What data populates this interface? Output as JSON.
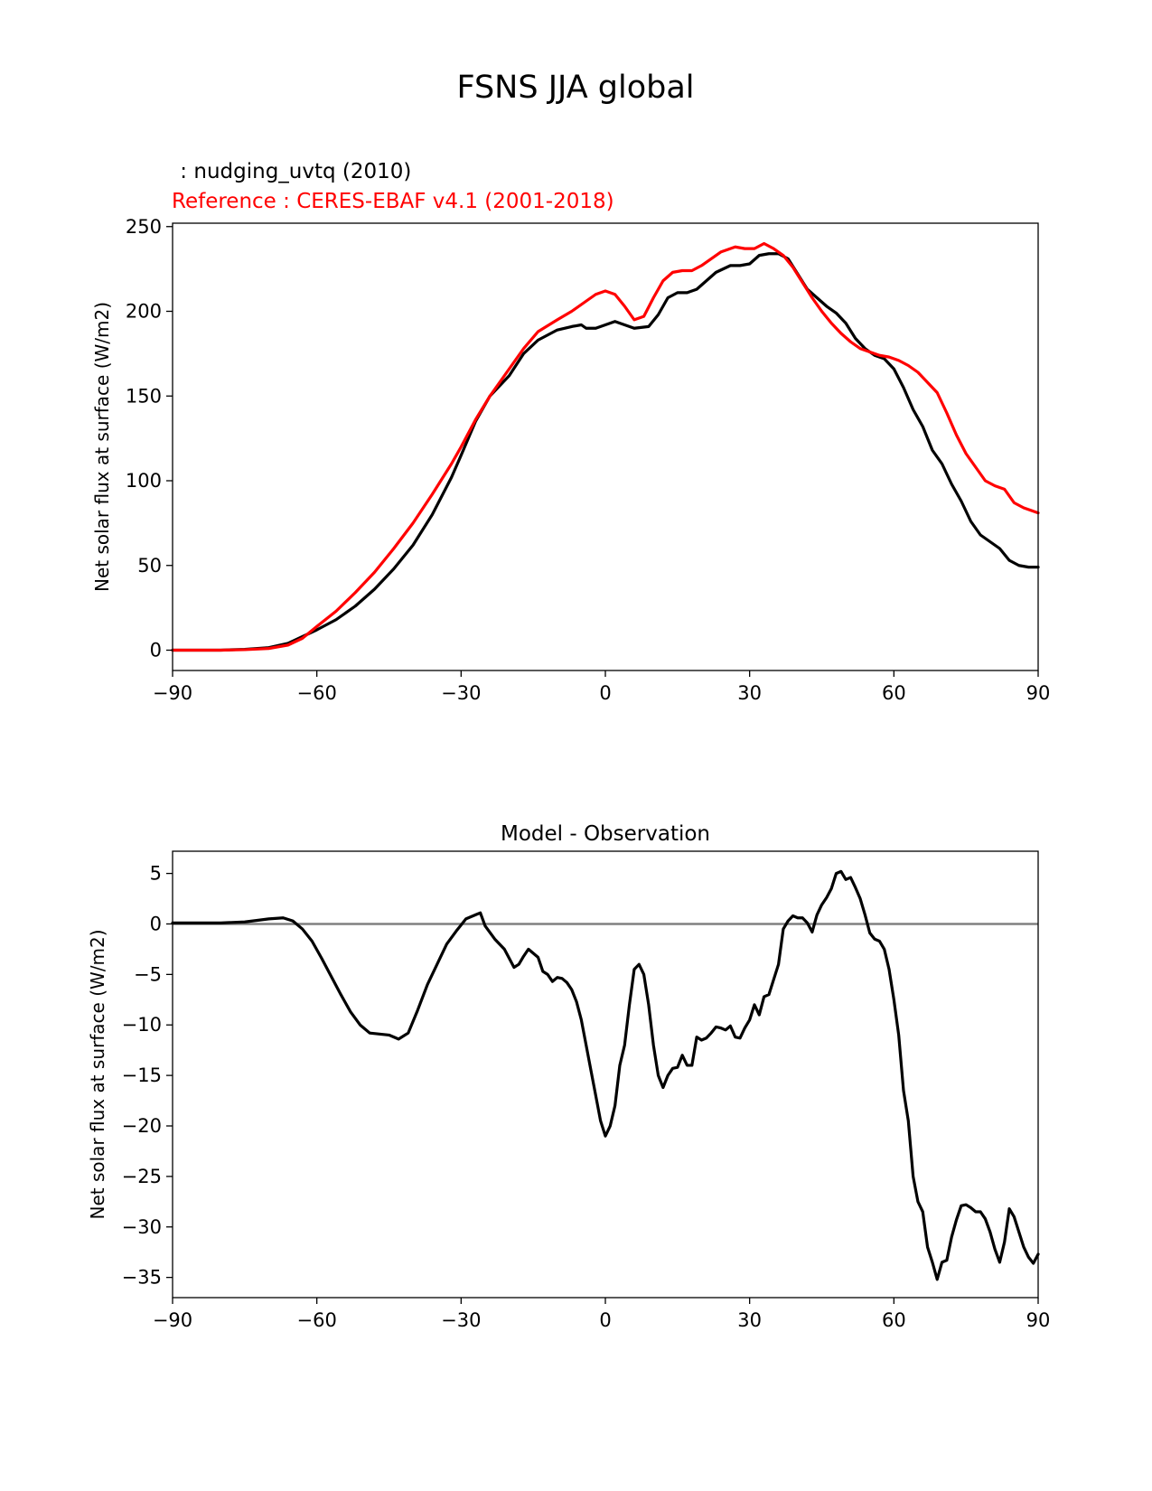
{
  "figure": {
    "title": "FSNS JJA global",
    "test_label": " : nudging_uvtq (2010)",
    "ref_label": "Reference : CERES-EBAF v4.1 (2001-2018)"
  },
  "colors": {
    "test": "#000000",
    "reference": "#ff0000",
    "zero_line": "#808080"
  },
  "chart_data": [
    {
      "type": "line",
      "title": "",
      "xlabel": "",
      "ylabel": "Net solar flux at surface (W/m2)",
      "xlim": [
        -90,
        90
      ],
      "ylim": [
        -12,
        252
      ],
      "xticks": [
        -90,
        -60,
        -30,
        0,
        30,
        60,
        90
      ],
      "yticks": [
        0,
        50,
        100,
        150,
        200,
        250
      ],
      "series": [
        {
          "name": "nudging_uvtq (2010)",
          "color": "#000000",
          "points": [
            [
              -90,
              0
            ],
            [
              -80,
              0
            ],
            [
              -75,
              0.5
            ],
            [
              -70,
              1.5
            ],
            [
              -66,
              4
            ],
            [
              -63,
              8
            ],
            [
              -60,
              12
            ],
            [
              -56,
              18
            ],
            [
              -52,
              26
            ],
            [
              -48,
              36
            ],
            [
              -44,
              48
            ],
            [
              -40,
              62
            ],
            [
              -36,
              80
            ],
            [
              -32,
              102
            ],
            [
              -30,
              115
            ],
            [
              -27,
              135
            ],
            [
              -24,
              150
            ],
            [
              -20,
              162
            ],
            [
              -17,
              175
            ],
            [
              -14,
              183
            ],
            [
              -10,
              189
            ],
            [
              -7,
              191
            ],
            [
              -5,
              192
            ],
            [
              -4,
              190
            ],
            [
              -2,
              190
            ],
            [
              0,
              192
            ],
            [
              2,
              194
            ],
            [
              4,
              192
            ],
            [
              6,
              190
            ],
            [
              9,
              191
            ],
            [
              11,
              198
            ],
            [
              13,
              208
            ],
            [
              15,
              211
            ],
            [
              17,
              211
            ],
            [
              19,
              213
            ],
            [
              21,
              218
            ],
            [
              23,
              223
            ],
            [
              26,
              227
            ],
            [
              28,
              227
            ],
            [
              30,
              228
            ],
            [
              32,
              233
            ],
            [
              34,
              234
            ],
            [
              36,
              234
            ],
            [
              38,
              231
            ],
            [
              40,
              222
            ],
            [
              42,
              213
            ],
            [
              44,
              208
            ],
            [
              46,
              203
            ],
            [
              48,
              199
            ],
            [
              50,
              193
            ],
            [
              52,
              184
            ],
            [
              54,
              178
            ],
            [
              56,
              174
            ],
            [
              58,
              172
            ],
            [
              60,
              166
            ],
            [
              62,
              155
            ],
            [
              64,
              142
            ],
            [
              66,
              132
            ],
            [
              68,
              118
            ],
            [
              70,
              110
            ],
            [
              72,
              98
            ],
            [
              74,
              88
            ],
            [
              76,
              76
            ],
            [
              78,
              68
            ],
            [
              80,
              64
            ],
            [
              82,
              60
            ],
            [
              84,
              53
            ],
            [
              86,
              50
            ],
            [
              88,
              49
            ],
            [
              90,
              49
            ]
          ]
        },
        {
          "name": "CERES-EBAF v4.1 (2001-2018)",
          "color": "#ff0000",
          "points": [
            [
              -90,
              0
            ],
            [
              -80,
              0
            ],
            [
              -75,
              0.3
            ],
            [
              -70,
              1
            ],
            [
              -66,
              3
            ],
            [
              -63,
              7
            ],
            [
              -60,
              14
            ],
            [
              -56,
              23
            ],
            [
              -52,
              34
            ],
            [
              -48,
              46
            ],
            [
              -44,
              60
            ],
            [
              -40,
              75
            ],
            [
              -36,
              92
            ],
            [
              -32,
              110
            ],
            [
              -30,
              120
            ],
            [
              -27,
              136
            ],
            [
              -24,
              150
            ],
            [
              -20,
              166
            ],
            [
              -17,
              178
            ],
            [
              -14,
              188
            ],
            [
              -10,
              195
            ],
            [
              -7,
              200
            ],
            [
              -4,
              206
            ],
            [
              -2,
              210
            ],
            [
              0,
              212
            ],
            [
              2,
              210
            ],
            [
              4,
              203
            ],
            [
              6,
              195
            ],
            [
              8,
              197
            ],
            [
              10,
              208
            ],
            [
              12,
              218
            ],
            [
              14,
              223
            ],
            [
              16,
              224
            ],
            [
              18,
              224
            ],
            [
              20,
              227
            ],
            [
              22,
              231
            ],
            [
              24,
              235
            ],
            [
              27,
              238
            ],
            [
              29,
              237
            ],
            [
              31,
              237
            ],
            [
              33,
              240
            ],
            [
              35,
              237
            ],
            [
              37,
              233
            ],
            [
              39,
              226
            ],
            [
              41,
              217
            ],
            [
              43,
              208
            ],
            [
              45,
              200
            ],
            [
              47,
              193
            ],
            [
              49,
              187
            ],
            [
              51,
              182
            ],
            [
              53,
              178
            ],
            [
              55,
              176
            ],
            [
              57,
              174
            ],
            [
              59,
              173
            ],
            [
              61,
              171
            ],
            [
              63,
              168
            ],
            [
              65,
              164
            ],
            [
              67,
              158
            ],
            [
              69,
              152
            ],
            [
              71,
              140
            ],
            [
              73,
              127
            ],
            [
              75,
              116
            ],
            [
              77,
              108
            ],
            [
              79,
              100
            ],
            [
              81,
              97
            ],
            [
              83,
              95
            ],
            [
              85,
              87
            ],
            [
              87,
              84
            ],
            [
              89,
              82
            ],
            [
              90,
              81
            ]
          ]
        }
      ]
    },
    {
      "type": "line",
      "title": "Model - Observation",
      "xlabel": "",
      "ylabel": "Net solar flux at surface (W/m2)",
      "xlim": [
        -90,
        90
      ],
      "ylim": [
        -37,
        7.2
      ],
      "xticks": [
        -90,
        -60,
        -30,
        0,
        30,
        60,
        90
      ],
      "yticks": [
        5,
        0,
        -5,
        -10,
        -15,
        -20,
        -25,
        -30,
        -35
      ],
      "zero_line": 0,
      "series": [
        {
          "name": "",
          "color": "#000000",
          "points": [
            [
              -90,
              0.1
            ],
            [
              -80,
              0.1
            ],
            [
              -75,
              0.2
            ],
            [
              -70,
              0.5
            ],
            [
              -67,
              0.6
            ],
            [
              -65,
              0.3
            ],
            [
              -63,
              -0.5
            ],
            [
              -61,
              -1.7
            ],
            [
              -59,
              -3.4
            ],
            [
              -57,
              -5.2
            ],
            [
              -55,
              -7
            ],
            [
              -53,
              -8.7
            ],
            [
              -51,
              -10
            ],
            [
              -49,
              -10.8
            ],
            [
              -47,
              -10.9
            ],
            [
              -45,
              -11
            ],
            [
              -43,
              -11.4
            ],
            [
              -41,
              -10.8
            ],
            [
              -39,
              -8.5
            ],
            [
              -37,
              -6
            ],
            [
              -35,
              -4
            ],
            [
              -33,
              -2
            ],
            [
              -31,
              -0.7
            ],
            [
              -29,
              0.5
            ],
            [
              -27,
              0.9
            ],
            [
              -26,
              1.1
            ],
            [
              -25,
              -0.2
            ],
            [
              -23,
              -1.5
            ],
            [
              -21,
              -2.5
            ],
            [
              -19,
              -4.3
            ],
            [
              -18,
              -4
            ],
            [
              -17,
              -3.2
            ],
            [
              -16,
              -2.5
            ],
            [
              -14,
              -3.3
            ],
            [
              -13,
              -4.7
            ],
            [
              -12,
              -5
            ],
            [
              -11,
              -5.7
            ],
            [
              -10,
              -5.3
            ],
            [
              -9,
              -5.4
            ],
            [
              -8,
              -5.8
            ],
            [
              -7,
              -6.5
            ],
            [
              -6,
              -7.7
            ],
            [
              -5,
              -9.5
            ],
            [
              -4,
              -12
            ],
            [
              -3,
              -14.5
            ],
            [
              -2,
              -17
            ],
            [
              -1,
              -19.5
            ],
            [
              0,
              -21
            ],
            [
              1,
              -20
            ],
            [
              2,
              -18
            ],
            [
              3,
              -14
            ],
            [
              4,
              -12
            ],
            [
              5,
              -8
            ],
            [
              6,
              -4.5
            ],
            [
              7,
              -4
            ],
            [
              8,
              -5
            ],
            [
              9,
              -8
            ],
            [
              10,
              -12
            ],
            [
              11,
              -15
            ],
            [
              12,
              -16.2
            ],
            [
              13,
              -15
            ],
            [
              14,
              -14.3
            ],
            [
              15,
              -14.2
            ],
            [
              16,
              -13
            ],
            [
              17,
              -14
            ],
            [
              18,
              -14
            ],
            [
              19,
              -11.2
            ],
            [
              20,
              -11.5
            ],
            [
              21,
              -11.3
            ],
            [
              22,
              -10.8
            ],
            [
              23,
              -10.2
            ],
            [
              24,
              -10.3
            ],
            [
              25,
              -10.5
            ],
            [
              26,
              -10.1
            ],
            [
              27,
              -11.2
            ],
            [
              28,
              -11.3
            ],
            [
              29,
              -10.3
            ],
            [
              30,
              -9.5
            ],
            [
              31,
              -8
            ],
            [
              32,
              -9
            ],
            [
              33,
              -7.2
            ],
            [
              34,
              -7
            ],
            [
              35,
              -5.5
            ],
            [
              36,
              -4
            ],
            [
              37,
              -0.5
            ],
            [
              38,
              0.3
            ],
            [
              39,
              0.8
            ],
            [
              40,
              0.6
            ],
            [
              41,
              0.6
            ],
            [
              42,
              0.1
            ],
            [
              43,
              -0.8
            ],
            [
              44,
              0.9
            ],
            [
              45,
              1.9
            ],
            [
              46,
              2.6
            ],
            [
              47,
              3.5
            ],
            [
              48,
              5
            ],
            [
              49,
              5.2
            ],
            [
              50,
              4.4
            ],
            [
              51,
              4.6
            ],
            [
              52,
              3.6
            ],
            [
              53,
              2.5
            ],
            [
              54,
              0.9
            ],
            [
              55,
              -0.9
            ],
            [
              56,
              -1.5
            ],
            [
              57,
              -1.7
            ],
            [
              58,
              -2.5
            ],
            [
              59,
              -4.5
            ],
            [
              60,
              -7.5
            ],
            [
              61,
              -11
            ],
            [
              62,
              -16.5
            ],
            [
              63,
              -19.5
            ],
            [
              64,
              -25
            ],
            [
              65,
              -27.5
            ],
            [
              66,
              -28.5
            ],
            [
              67,
              -32
            ],
            [
              68,
              -33.5
            ],
            [
              69,
              -35.2
            ],
            [
              70,
              -33.5
            ],
            [
              71,
              -33.3
            ],
            [
              72,
              -31
            ],
            [
              73,
              -29.3
            ],
            [
              74,
              -27.9
            ],
            [
              75,
              -27.8
            ],
            [
              76,
              -28.1
            ],
            [
              77,
              -28.5
            ],
            [
              78,
              -28.5
            ],
            [
              79,
              -29.2
            ],
            [
              80,
              -30.5
            ],
            [
              81,
              -32.2
            ],
            [
              82,
              -33.5
            ],
            [
              83,
              -31.5
            ],
            [
              84,
              -28.2
            ],
            [
              85,
              -29
            ],
            [
              86,
              -30.5
            ],
            [
              87,
              -32
            ],
            [
              88,
              -33
            ],
            [
              89,
              -33.6
            ],
            [
              90,
              -32.7
            ]
          ]
        }
      ]
    }
  ]
}
